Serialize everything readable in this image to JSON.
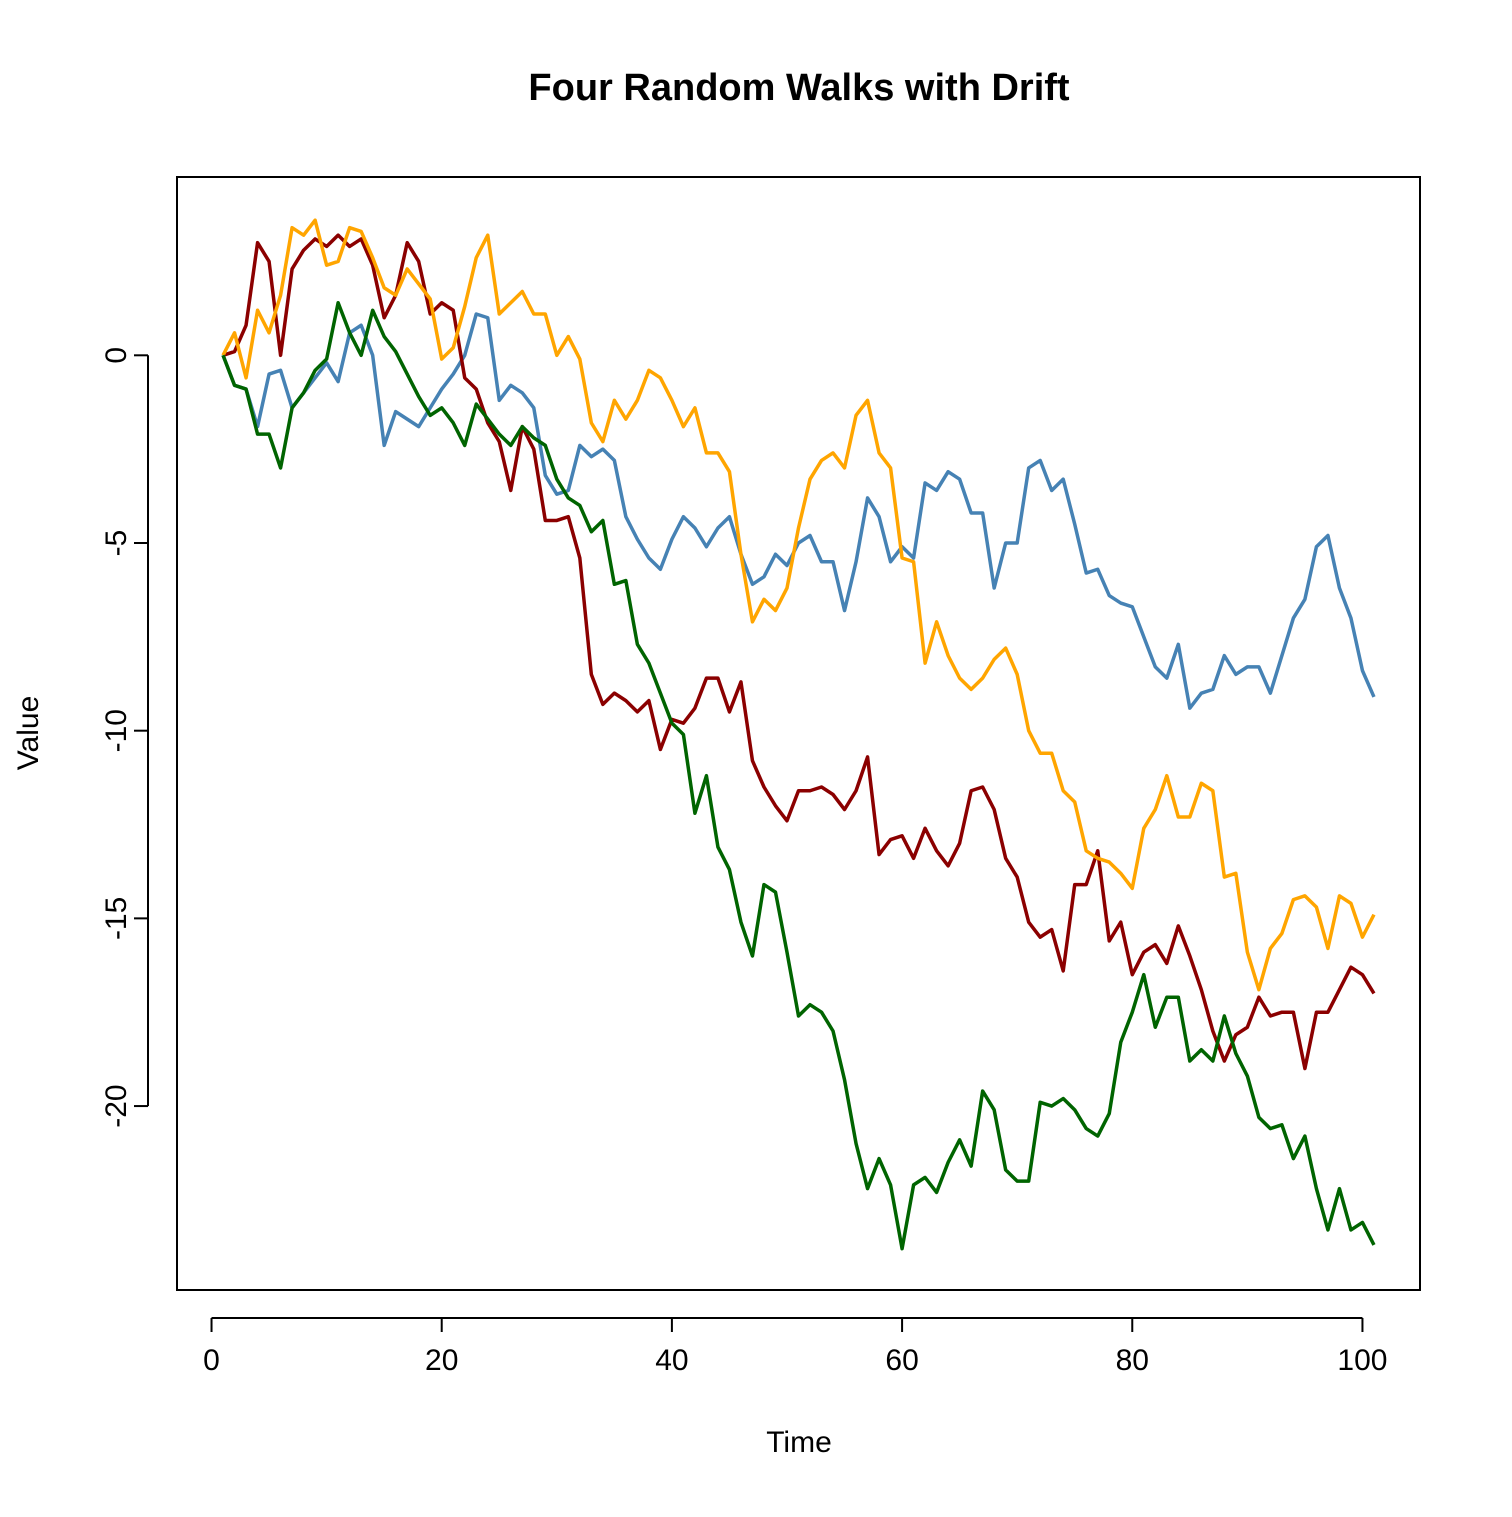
{
  "chart_data": {
    "type": "line",
    "title": "Four Random Walks with Drift",
    "x_label": "Time",
    "y_label": "Value",
    "x": [
      1,
      2,
      3,
      4,
      5,
      6,
      7,
      8,
      9,
      10,
      11,
      12,
      13,
      14,
      15,
      16,
      17,
      18,
      19,
      20,
      21,
      22,
      23,
      24,
      25,
      26,
      27,
      28,
      29,
      30,
      31,
      32,
      33,
      34,
      35,
      36,
      37,
      38,
      39,
      40,
      41,
      42,
      43,
      44,
      45,
      46,
      47,
      48,
      49,
      50,
      51,
      52,
      53,
      54,
      55,
      56,
      57,
      58,
      59,
      60,
      61,
      62,
      63,
      64,
      65,
      66,
      67,
      68,
      69,
      70,
      71,
      72,
      73,
      74,
      75,
      76,
      77,
      78,
      79,
      80,
      81,
      82,
      83,
      84,
      85,
      86,
      87,
      88,
      89,
      90,
      91,
      92,
      93,
      94,
      95,
      96,
      97,
      98,
      99,
      100,
      101
    ],
    "series": [
      {
        "color": "#4682b4",
        "values": [
          0,
          -0.8,
          -0.9,
          -1.9,
          -0.5,
          -0.4,
          -1.4,
          -1.0,
          -0.6,
          -0.2,
          -0.7,
          0.6,
          0.8,
          0.0,
          -2.4,
          -1.5,
          -1.7,
          -1.9,
          -1.4,
          -0.9,
          -0.5,
          0.0,
          1.1,
          1.0,
          -1.2,
          -0.8,
          -1.0,
          -1.4,
          -3.2,
          -3.7,
          -3.6,
          -2.4,
          -2.7,
          -2.5,
          -2.8,
          -4.3,
          -4.9,
          -5.4,
          -5.7,
          -4.9,
          -4.3,
          -4.6,
          -5.1,
          -4.6,
          -4.3,
          -5.3,
          -6.1,
          -5.9,
          -5.3,
          -5.6,
          -5.0,
          -4.8,
          -5.5,
          -5.5,
          -6.8,
          -5.5,
          -3.8,
          -4.3,
          -5.5,
          -5.1,
          -5.4,
          -3.4,
          -3.6,
          -3.1,
          -3.3,
          -4.2,
          -4.2,
          -6.2,
          -5.0,
          -5.0,
          -3.0,
          -2.8,
          -3.6,
          -3.3,
          -4.5,
          -5.8,
          -5.7,
          -6.4,
          -6.6,
          -6.7,
          -7.5,
          -8.3,
          -8.6,
          -7.7,
          -9.4,
          -9.0,
          -8.9,
          -8.0,
          -8.5,
          -8.3,
          -8.3,
          -9.0,
          -8.0,
          -7.0,
          -6.5,
          -5.1,
          -4.8,
          -6.2,
          -7.0,
          -8.4,
          -9.1
        ]
      },
      {
        "color": "#8b0000",
        "values": [
          0,
          0.1,
          0.8,
          3.0,
          2.5,
          0.0,
          2.3,
          2.8,
          3.1,
          2.9,
          3.2,
          2.9,
          3.1,
          2.4,
          1.0,
          1.6,
          3.0,
          2.5,
          1.1,
          1.4,
          1.2,
          -0.6,
          -0.9,
          -1.8,
          -2.3,
          -3.6,
          -1.9,
          -2.5,
          -4.4,
          -4.4,
          -4.3,
          -5.4,
          -8.5,
          -9.3,
          -9.0,
          -9.2,
          -9.5,
          -9.2,
          -10.5,
          -9.7,
          -9.8,
          -9.4,
          -8.6,
          -8.6,
          -9.5,
          -8.7,
          -10.8,
          -11.5,
          -12.0,
          -12.4,
          -11.6,
          -11.6,
          -11.5,
          -11.7,
          -12.1,
          -11.6,
          -10.7,
          -13.3,
          -12.9,
          -12.8,
          -13.4,
          -12.6,
          -13.2,
          -13.6,
          -13.0,
          -11.6,
          -11.5,
          -12.1,
          -13.4,
          -13.9,
          -15.1,
          -15.5,
          -15.3,
          -16.4,
          -14.1,
          -14.1,
          -13.2,
          -15.6,
          -15.1,
          -16.5,
          -15.9,
          -15.7,
          -16.2,
          -15.2,
          -16.0,
          -16.9,
          -18.0,
          -18.8,
          -18.1,
          -17.9,
          -17.1,
          -17.6,
          -17.5,
          -17.5,
          -19.0,
          -17.5,
          -17.5,
          -16.9,
          -16.3,
          -16.5,
          -17.0
        ]
      },
      {
        "color": "#ffa500",
        "values": [
          0,
          0.6,
          -0.6,
          1.2,
          0.6,
          1.6,
          3.4,
          3.2,
          3.6,
          2.4,
          2.5,
          3.4,
          3.3,
          2.6,
          1.8,
          1.6,
          2.3,
          1.9,
          1.5,
          -0.1,
          0.2,
          1.3,
          2.6,
          3.2,
          1.1,
          1.4,
          1.7,
          1.1,
          1.1,
          0.0,
          0.5,
          -0.1,
          -1.8,
          -2.3,
          -1.2,
          -1.7,
          -1.2,
          -0.4,
          -0.6,
          -1.2,
          -1.9,
          -1.4,
          -2.6,
          -2.6,
          -3.1,
          -5.3,
          -7.1,
          -6.5,
          -6.8,
          -6.2,
          -4.6,
          -3.3,
          -2.8,
          -2.6,
          -3.0,
          -1.6,
          -1.2,
          -2.6,
          -3.0,
          -5.4,
          -5.5,
          -8.2,
          -7.1,
          -8.0,
          -8.6,
          -8.9,
          -8.6,
          -8.1,
          -7.8,
          -8.5,
          -10.0,
          -10.6,
          -10.6,
          -11.6,
          -11.9,
          -13.2,
          -13.4,
          -13.5,
          -13.8,
          -14.2,
          -12.6,
          -12.1,
          -11.2,
          -12.3,
          -12.3,
          -11.4,
          -11.6,
          -13.9,
          -13.8,
          -15.9,
          -16.9,
          -15.8,
          -15.4,
          -14.5,
          -14.4,
          -14.7,
          -15.8,
          -14.4,
          -14.6,
          -15.5,
          -14.9
        ]
      },
      {
        "color": "#006400",
        "values": [
          0,
          -0.8,
          -0.9,
          -2.1,
          -2.1,
          -3.0,
          -1.4,
          -1.0,
          -0.4,
          -0.1,
          1.4,
          0.6,
          0.0,
          1.2,
          0.5,
          0.1,
          -0.5,
          -1.1,
          -1.6,
          -1.4,
          -1.8,
          -2.4,
          -1.3,
          -1.7,
          -2.1,
          -2.4,
          -1.9,
          -2.2,
          -2.4,
          -3.3,
          -3.8,
          -4.0,
          -4.7,
          -4.4,
          -6.1,
          -6.0,
          -7.7,
          -8.2,
          -9.0,
          -9.8,
          -10.1,
          -12.2,
          -11.2,
          -13.1,
          -13.7,
          -15.1,
          -16.0,
          -14.1,
          -14.3,
          -15.9,
          -17.6,
          -17.3,
          -17.5,
          -18.0,
          -19.3,
          -21.0,
          -22.2,
          -21.4,
          -22.1,
          -23.8,
          -22.1,
          -21.9,
          -22.3,
          -21.5,
          -20.9,
          -21.6,
          -19.6,
          -20.1,
          -21.7,
          -22.0,
          -22.0,
          -19.9,
          -20.0,
          -19.8,
          -20.1,
          -20.6,
          -20.8,
          -20.2,
          -18.3,
          -17.5,
          -16.5,
          -17.9,
          -17.1,
          -17.1,
          -18.8,
          -18.5,
          -18.8,
          -17.6,
          -18.6,
          -19.2,
          -20.3,
          -20.6,
          -20.5,
          -21.4,
          -20.8,
          -22.2,
          -23.3,
          -22.2,
          -23.3,
          -23.1,
          -23.7
        ]
      }
    ],
    "xlim": [
      -3,
      105
    ],
    "ylim": [
      -24.9,
      4.75
    ],
    "xticks": [
      0,
      20,
      40,
      60,
      80,
      100
    ],
    "yticks": [
      -20,
      -15,
      -10,
      -5,
      0
    ]
  }
}
